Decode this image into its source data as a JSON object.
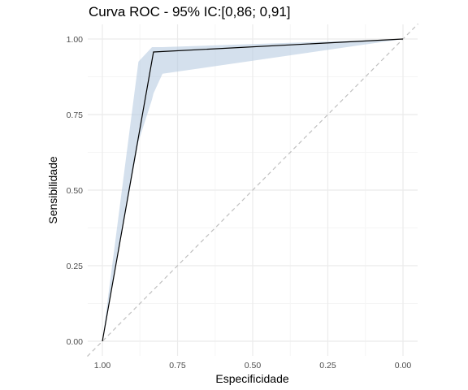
{
  "chart_data": {
    "type": "line",
    "title": "Curva ROC - 95% IC:[0,86; 0,91]",
    "xlabel": "Especificidade",
    "ylabel": "Sensibilidade",
    "xlim": [
      1.0,
      0.0
    ],
    "ylim": [
      0.0,
      1.0
    ],
    "x_reversed": true,
    "x_ticks": [
      1.0,
      0.75,
      0.5,
      0.25,
      0.0
    ],
    "x_tick_labels": [
      "1.00",
      "0.75",
      "0.50",
      "0.25",
      "0.00"
    ],
    "y_ticks": [
      0.0,
      0.25,
      0.5,
      0.75,
      1.0
    ],
    "y_tick_labels": [
      "0.00",
      "0.25",
      "0.50",
      "0.75",
      "1.00"
    ],
    "grid": true,
    "series": [
      {
        "kind": "roc-curve",
        "color": "#000000",
        "x": [
          1.0,
          0.83,
          0.0
        ],
        "y": [
          0.0,
          0.957,
          1.0
        ]
      }
    ],
    "confidence_band": {
      "color": "#b8cce1",
      "x": [
        1.0,
        0.88,
        0.835,
        0.83,
        0.8,
        0.0
      ],
      "upper": [
        0.0,
        0.925,
        0.973,
        0.973,
        0.973,
        1.0
      ],
      "lower": [
        0.0,
        0.66,
        0.8,
        0.82,
        0.885,
        1.0
      ]
    },
    "reference_line": {
      "x": [
        1.0,
        0.0
      ],
      "y": [
        0.0,
        1.0
      ],
      "color": "#bfbfbf",
      "style": "dashed"
    }
  },
  "colors": {
    "grid_major": "#ebebeb",
    "grid_minor": "#f5f5f5",
    "background": "#ffffff"
  }
}
